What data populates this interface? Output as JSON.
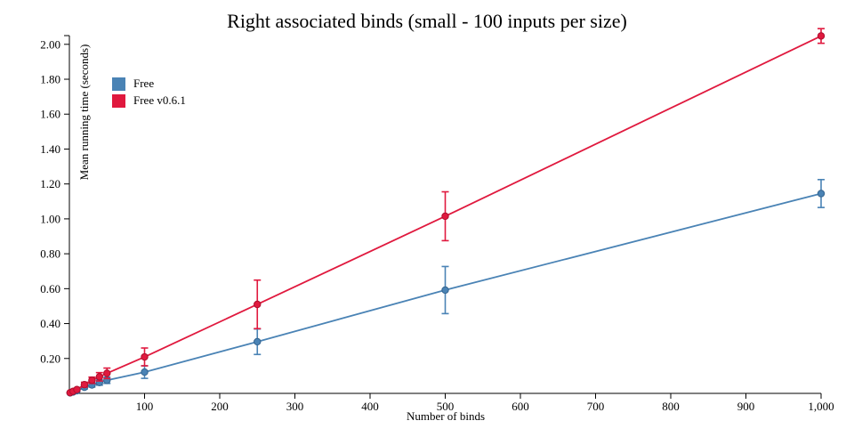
{
  "chart_data": {
    "type": "line",
    "title": "Right associated binds (small - 100 inputs per size)",
    "xlabel": "Number of binds",
    "ylabel": "Mean running time (seconds)",
    "xlim": [
      0,
      1000
    ],
    "ylim": [
      0,
      2.05
    ],
    "grid": false,
    "error_bars": true,
    "legend_position": "top-left-inside",
    "axis_color": "#000000",
    "background": "#ffffff",
    "x_ticks": {
      "values": [
        100,
        200,
        300,
        400,
        500,
        600,
        700,
        800,
        900,
        1000
      ],
      "labels": [
        "100",
        "200",
        "300",
        "400",
        "500",
        "600",
        "700",
        "800",
        "900",
        "1,000"
      ]
    },
    "y_ticks": {
      "values": [
        0.2,
        0.4,
        0.6,
        0.8,
        1.0,
        1.2,
        1.4,
        1.6,
        1.8,
        2.0
      ],
      "labels": [
        "0.20",
        "0.40",
        "0.60",
        "0.80",
        "1.00",
        "1.20",
        "1.40",
        "1.60",
        "1.80",
        "2.00"
      ]
    },
    "series": [
      {
        "name": "Free",
        "color": "#4a83b5",
        "edge_color": "#34648f",
        "points_format": "[number_of_binds, mean_seconds, error_half_width]",
        "points": [
          [
            1,
            0.003,
            0.001
          ],
          [
            5,
            0.008,
            0.003
          ],
          [
            10,
            0.015,
            0.005
          ],
          [
            20,
            0.035,
            0.01
          ],
          [
            30,
            0.048,
            0.012
          ],
          [
            40,
            0.062,
            0.015
          ],
          [
            50,
            0.075,
            0.018
          ],
          [
            100,
            0.122,
            0.036
          ],
          [
            250,
            0.296,
            0.073
          ],
          [
            500,
            0.592,
            0.135
          ],
          [
            1000,
            1.145,
            0.08
          ]
        ]
      },
      {
        "name": "Free v0.6.1",
        "color": "#e0193e",
        "edge_color": "#ad0e2d",
        "points_format": "[number_of_binds, mean_seconds, error_half_width]",
        "points": [
          [
            1,
            0.004,
            0.002
          ],
          [
            5,
            0.012,
            0.004
          ],
          [
            10,
            0.022,
            0.007
          ],
          [
            20,
            0.05,
            0.014
          ],
          [
            30,
            0.075,
            0.018
          ],
          [
            40,
            0.095,
            0.024
          ],
          [
            50,
            0.115,
            0.03
          ],
          [
            100,
            0.209,
            0.051
          ],
          [
            250,
            0.51,
            0.139
          ],
          [
            500,
            1.015,
            0.14
          ],
          [
            1000,
            2.048,
            0.042
          ]
        ]
      }
    ]
  }
}
